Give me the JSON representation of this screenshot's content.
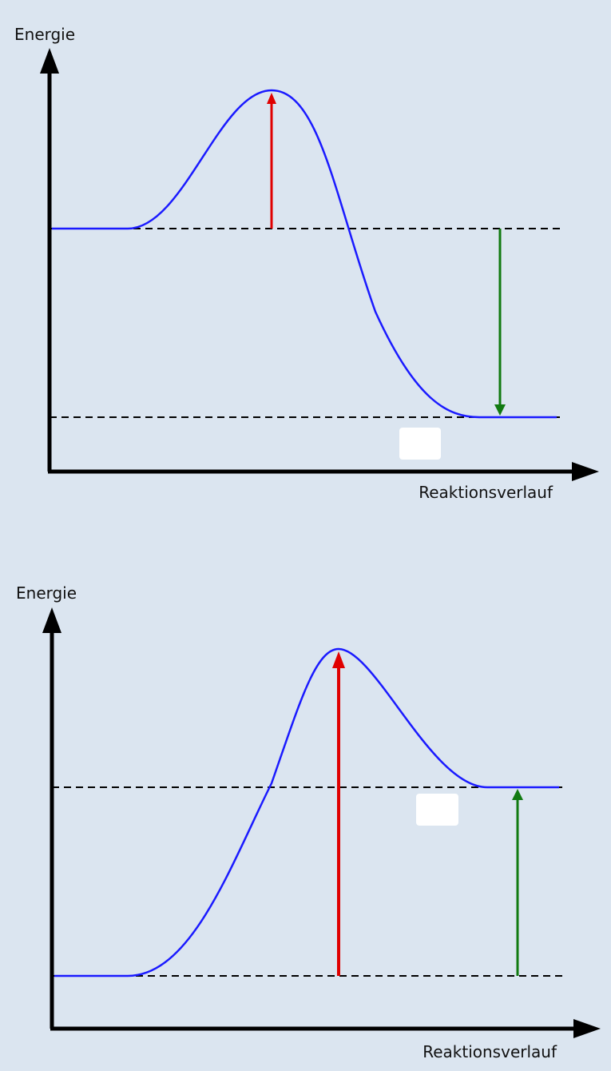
{
  "colors": {
    "background": "#dbe5f0",
    "axis": "#000000",
    "curve": "#1a1aff",
    "dashed_line": "#000000",
    "activation_arrow": "#e00000",
    "enthalpy_arrow": "#117a11",
    "answer_box": "#ffffff"
  },
  "diagrams": [
    {
      "reaction_type": "exothermic",
      "y_axis_label": "Energie",
      "x_axis_label": "Reaktionsverlauf",
      "energy_levels": {
        "reactants": 0.0,
        "transition_state": 0.73,
        "products": -1.0
      },
      "arrows": [
        {
          "name": "activation-energy-arrow",
          "from": "reactants",
          "to": "transition_state",
          "color": "activation_arrow",
          "direction": "up"
        },
        {
          "name": "reaction-enthalpy-arrow",
          "from": "reactants",
          "to": "products",
          "color": "enthalpy_arrow",
          "direction": "down"
        }
      ],
      "answer_box": {
        "text": ""
      }
    },
    {
      "reaction_type": "endothermic",
      "y_axis_label": "Energie",
      "x_axis_label": "Reaktionsverlauf",
      "energy_levels": {
        "reactants": 0.0,
        "transition_state": 1.73,
        "products": 1.0
      },
      "arrows": [
        {
          "name": "activation-energy-arrow",
          "from": "reactants",
          "to": "transition_state",
          "color": "activation_arrow",
          "direction": "up"
        },
        {
          "name": "reaction-enthalpy-arrow",
          "from": "reactants",
          "to": "products",
          "color": "enthalpy_arrow",
          "direction": "up"
        }
      ],
      "answer_box": {
        "text": ""
      }
    }
  ]
}
